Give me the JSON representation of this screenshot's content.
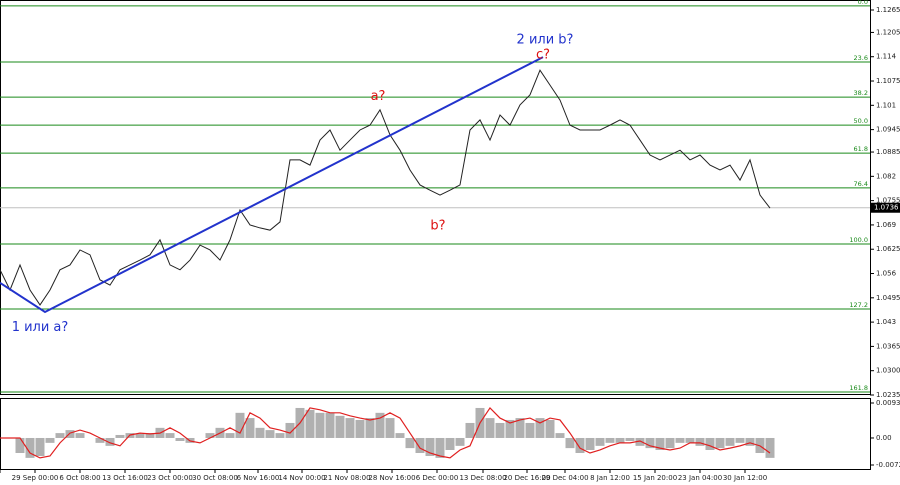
{
  "chart_data": [
    {
      "type": "price-line",
      "series": [
        {
          "name": "EURUSD",
          "color": "#222222",
          "values": [
            1.057,
            1.0516,
            1.0583,
            1.0516,
            1.0476,
            1.0516,
            1.057,
            1.0583,
            1.0623,
            1.061,
            1.0543,
            1.0529,
            1.057,
            1.0583,
            1.0596,
            1.061,
            1.065,
            1.0583,
            1.057,
            1.0596,
            1.0636,
            1.0623,
            1.0596,
            1.065,
            1.073,
            1.069,
            1.0682,
            1.0676,
            1.0698,
            1.0864,
            1.0864,
            1.085,
            1.0917,
            1.0944,
            1.089,
            1.0917,
            1.0944,
            1.0957,
            1.0998,
            1.0931,
            1.089,
            1.0837,
            1.0797,
            1.0783,
            1.077,
            1.0783,
            1.0797,
            1.0944,
            1.0971,
            1.0917,
            1.0984,
            1.0957,
            1.1011,
            1.1038,
            1.1104,
            1.1064,
            1.1024,
            1.0957,
            1.0944,
            1.0944,
            1.0944,
            1.0957,
            1.0971,
            1.0957,
            1.0917,
            1.0877,
            1.0864,
            1.0877,
            1.089,
            1.0864,
            1.0877,
            1.085,
            1.0837,
            1.085,
            1.081,
            1.0864,
            1.077,
            1.0735
          ]
        }
      ],
      "xlim": [
        0,
        77
      ],
      "ylim": [
        1.0235,
        1.1265
      ],
      "yticks": [
        {
          "value": 1.1265,
          "label": "1.1265"
        },
        {
          "value": 1.1205,
          "label": "1.1205"
        },
        1.114,
        1.1075,
        1.101,
        1.0945,
        1.0885,
        1.082,
        1.0755,
        1.069,
        1.0625,
        1.056,
        1.0495,
        1.043,
        1.0365,
        {
          "value": 1.03,
          "label": "1.0300"
        },
        1.0235
      ],
      "last_price": 1.0736,
      "levels": [
        {
          "label": "0.0",
          "value": 1.1276
        },
        {
          "label": "23.6",
          "value": 1.1126
        },
        {
          "label": "38.2",
          "value": 1.1032
        },
        {
          "label": "50.0",
          "value": 1.0957
        },
        {
          "label": "61.8",
          "value": 1.0882
        },
        {
          "label": "76.4",
          "value": 1.0789
        },
        {
          "label": "100.0",
          "value": 1.0639
        },
        {
          "label": "127.2",
          "value": 1.0465
        },
        {
          "label": "161.8",
          "value": 1.0243
        }
      ],
      "level_color": "#1a8a1a",
      "wave": {
        "color": "#2233cc",
        "x": [
          0,
          4.5,
          54.3
        ],
        "values": [
          1.0535,
          1.0457,
          1.1139
        ]
      },
      "annotations": [
        {
          "text": "1 или a?",
          "x": 4,
          "y": 1.0415,
          "style": "blue"
        },
        {
          "text": "2 или b?",
          "x": 54.5,
          "y": 1.1185,
          "style": "blue"
        },
        {
          "text": "a?",
          "x": 37.8,
          "y": 1.1033,
          "style": "red"
        },
        {
          "text": "b?",
          "x": 43.8,
          "y": 1.0687,
          "style": "red"
        },
        {
          "text": "c?",
          "x": 54.3,
          "y": 1.1145,
          "style": "red"
        }
      ]
    },
    {
      "type": "oscillator",
      "series": [
        {
          "name": "histogram",
          "color": "#b0b0b0",
          "values": [
            0,
            0,
            -0.004,
            -0.0053,
            -0.0048,
            -0.0013,
            0.0013,
            0.0021,
            0.0013,
            0,
            -0.0013,
            -0.0021,
            0.0008,
            0.0013,
            0.0011,
            0.0013,
            0.0027,
            0.0013,
            -0.0008,
            -0.0013,
            0,
            0.0013,
            0.0027,
            0.0013,
            0.0067,
            0.0053,
            0.0027,
            0.0021,
            0.0013,
            0.004,
            0.008,
            0.0075,
            0.0067,
            0.0067,
            0.0059,
            0.0053,
            0.0048,
            0.0053,
            0.0067,
            0.0053,
            0.0013,
            -0.0027,
            -0.004,
            -0.0048,
            -0.0053,
            -0.0032,
            -0.0021,
            0.004,
            0.008,
            0.0053,
            0.004,
            0.0048,
            0.0053,
            0.004,
            0.0053,
            0.0048,
            0.0013,
            -0.0027,
            -0.004,
            -0.0032,
            -0.0021,
            -0.0013,
            -0.0013,
            -0.0008,
            -0.0021,
            -0.0027,
            -0.0032,
            -0.0027,
            -0.0013,
            -0.0013,
            -0.0021,
            -0.0032,
            -0.0027,
            -0.0021,
            -0.0013,
            -0.0021,
            -0.004,
            -0.0053
          ]
        },
        {
          "name": "signal",
          "color": "#e02020",
          "values": [
            0,
            0,
            0,
            -0.004,
            -0.0053,
            -0.0048,
            -0.0013,
            0.0013,
            0.0021,
            0.0013,
            0,
            -0.0013,
            -0.0021,
            0.0008,
            0.0013,
            0.0011,
            0.0013,
            0.0027,
            0.0013,
            -0.0008,
            -0.0013,
            0,
            0.0013,
            0.0027,
            0.0013,
            0.0067,
            0.0053,
            0.0027,
            0.0021,
            0.0013,
            0.004,
            0.008,
            0.0075,
            0.0067,
            0.0067,
            0.0059,
            0.0053,
            0.0048,
            0.0053,
            0.0067,
            0.0053,
            0.0013,
            -0.0027,
            -0.004,
            -0.0048,
            -0.0053,
            -0.0032,
            -0.0021,
            0.004,
            0.008,
            0.0053,
            0.004,
            0.0048,
            0.0053,
            0.004,
            0.0053,
            0.0048,
            0.0013,
            -0.0027,
            -0.004,
            -0.0032,
            -0.0021,
            -0.0013,
            -0.0013,
            -0.0008,
            -0.0021,
            -0.0027,
            -0.0032,
            -0.0027,
            -0.0013,
            -0.0013,
            -0.0021,
            -0.0032,
            -0.0027,
            -0.0021,
            -0.0013,
            -0.0021,
            -0.004
          ]
        }
      ],
      "xlim": [
        0,
        77
      ],
      "ylim": [
        -0.0072,
        0.00932
      ],
      "yticks": [
        0.00932,
        {
          "value": 0,
          "label": "0.00"
        },
        -0.0072
      ],
      "xticks": [
        {
          "value": 0,
          "label": "6:00"
        },
        {
          "value": 3.5,
          "label": "29 Sep 00:00"
        },
        {
          "value": 8,
          "label": "6 Oct 08:00"
        },
        {
          "value": 12.5,
          "label": "13 Oct 16:00"
        },
        {
          "value": 17,
          "label": "23 Oct 00:00"
        },
        {
          "value": 21.5,
          "label": "30 Oct 08:00"
        },
        {
          "value": 25.8,
          "label": "6 Nov 16:00"
        },
        {
          "value": 30.2,
          "label": "14 Nov 00:00"
        },
        {
          "value": 34.7,
          "label": "21 Nov 08:00"
        },
        {
          "value": 39.2,
          "label": "28 Nov 16:00"
        },
        {
          "value": 43.7,
          "label": "6 Dec 00:00"
        },
        {
          "value": 48.3,
          "label": "13 Dec 08:00"
        },
        {
          "value": 52.7,
          "label": "20 Dec 16:00"
        },
        {
          "value": 56.5,
          "label": "29 Dec 04:00"
        },
        {
          "value": 61,
          "label": "8 Jan 12:00"
        },
        {
          "value": 65.5,
          "label": "15 Jan 20:00"
        },
        {
          "value": 70,
          "label": "23 Jan 04:00"
        },
        {
          "value": 74.5,
          "label": "30 Jan 12:00"
        }
      ]
    }
  ]
}
